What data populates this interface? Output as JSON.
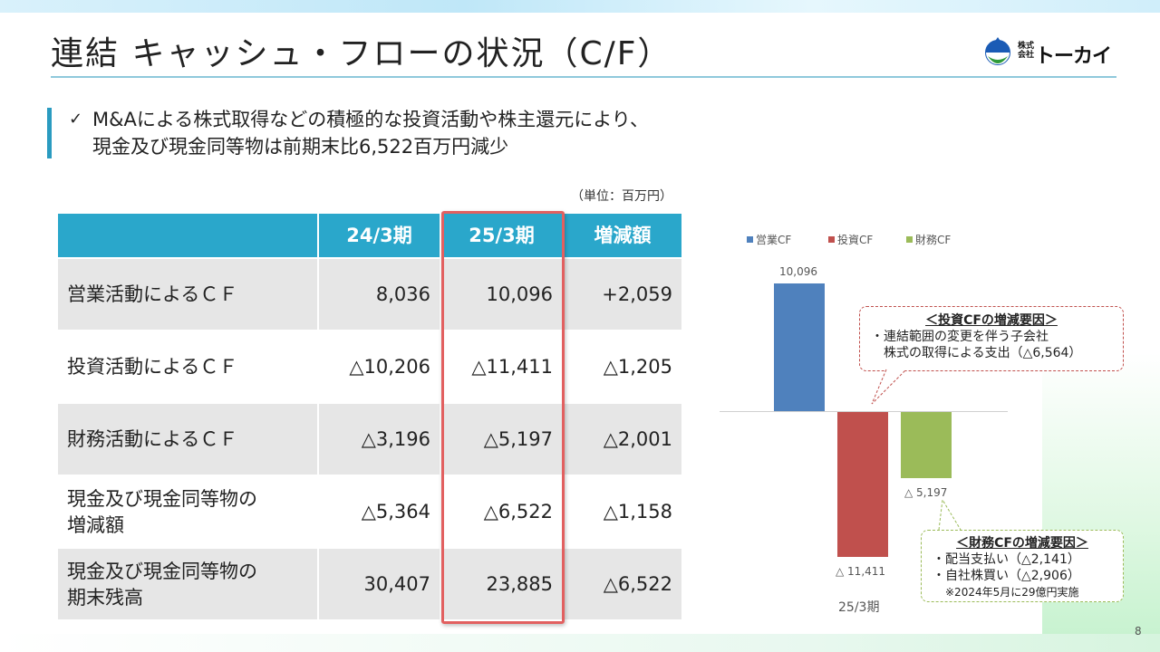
{
  "title": "連結 キャッシュ・フローの状況（C/F）",
  "logo": {
    "small_text": "株式会社",
    "name": "トーカイ"
  },
  "lead": {
    "check": "✓",
    "line1": "M&Aによる株式取得などの積極的な投資活動や株主還元により、",
    "line2": "現金及び現金同等物は前期末比6,522百万円減少"
  },
  "unit": "（単位：百万円）",
  "table": {
    "headers": [
      "",
      "24/3期",
      "25/3期",
      "増減額"
    ],
    "rows": [
      {
        "label": "営業活動によるＣＦ",
        "v1": "8,036",
        "v2": "10,096",
        "v3": "+2,059"
      },
      {
        "label": "投資活動によるＣＦ",
        "v1": "△10,206",
        "v2": "△11,411",
        "v3": "△1,205"
      },
      {
        "label": "財務活動によるＣＦ",
        "v1": "△3,196",
        "v2": "△5,197",
        "v3": "△2,001"
      },
      {
        "label_l1": "現金及び現金同等物の",
        "label_l2": "増減額",
        "v1": "△5,364",
        "v2": "△6,522",
        "v3": "△1,158"
      },
      {
        "label_l1": "現金及び現金同等物の",
        "label_l2": "期末残高",
        "v1": "30,407",
        "v2": "23,885",
        "v3": "△6,522"
      }
    ]
  },
  "chart_data": {
    "type": "bar",
    "categories": [
      "25/3期"
    ],
    "series": [
      {
        "name": "営業CF",
        "values": [
          10096
        ],
        "label": "10,096",
        "color": "#4f81bd"
      },
      {
        "name": "投資CF",
        "values": [
          -11411
        ],
        "label": "△ 11,411",
        "color": "#c0504d"
      },
      {
        "name": "財務CF",
        "values": [
          -5197
        ],
        "label": "△ 5,197",
        "color": "#9bbb59"
      }
    ],
    "title": "",
    "xlabel": "",
    "ylabel": "",
    "ylim": [
      -13500,
      11500
    ],
    "grid": false,
    "legend": "top"
  },
  "notes": {
    "investing": {
      "title": "＜投資CFの増減要因＞",
      "items": [
        "・連結範囲の変更を伴う子会社",
        "株式の取得による支出（△6,564）"
      ]
    },
    "financing": {
      "title": "＜財務CFの増減要因＞",
      "items": [
        "・配当支払い（△2,141）",
        "・自社株買い（△2,906）",
        "※2024年5月に29億円実施"
      ]
    }
  },
  "page_number": "8"
}
